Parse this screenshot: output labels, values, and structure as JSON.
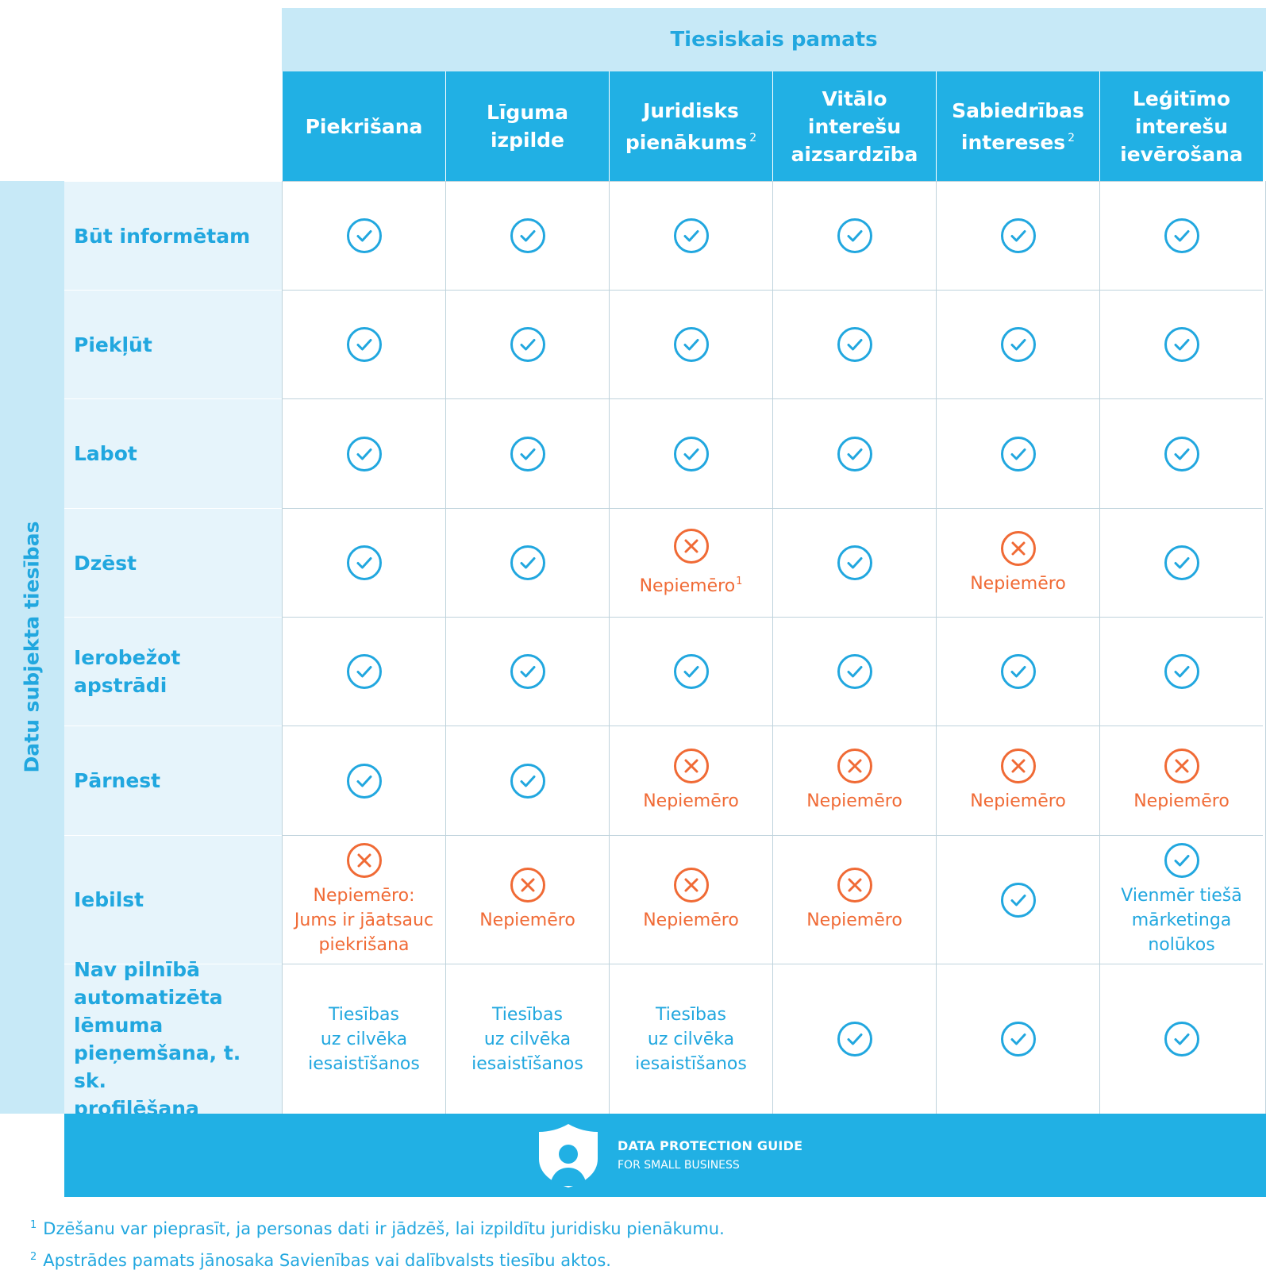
{
  "header": {
    "title": "Tiesiskais pamats"
  },
  "columns": [
    {
      "label": "Piekrišana",
      "sup": ""
    },
    {
      "label": "Līguma izpilde",
      "sup": ""
    },
    {
      "label": "Juridisks\npienākums",
      "sup": "2"
    },
    {
      "label": "Vitālo interešu\naizsardzība",
      "sup": ""
    },
    {
      "label": "Sabiedrības\nintereses",
      "sup": "2"
    },
    {
      "label": "Leģitīmo\ninterešu\nievērošana",
      "sup": ""
    }
  ],
  "side_label": "Datu subjekta tiesības",
  "rows": [
    {
      "label": "Būt informētam",
      "cells": [
        {
          "icon": "check-icon"
        },
        {
          "icon": "check-icon"
        },
        {
          "icon": "check-icon"
        },
        {
          "icon": "check-icon"
        },
        {
          "icon": "check-icon"
        },
        {
          "icon": "check-icon"
        }
      ]
    },
    {
      "label": "Piekļūt",
      "cells": [
        {
          "icon": "check-icon"
        },
        {
          "icon": "check-icon"
        },
        {
          "icon": "check-icon"
        },
        {
          "icon": "check-icon"
        },
        {
          "icon": "check-icon"
        },
        {
          "icon": "check-icon"
        }
      ]
    },
    {
      "label": "Labot",
      "cells": [
        {
          "icon": "check-icon"
        },
        {
          "icon": "check-icon"
        },
        {
          "icon": "check-icon"
        },
        {
          "icon": "check-icon"
        },
        {
          "icon": "check-icon"
        },
        {
          "icon": "check-icon"
        }
      ]
    },
    {
      "label": "Dzēst",
      "cells": [
        {
          "icon": "check-icon"
        },
        {
          "icon": "check-icon"
        },
        {
          "icon": "cross-icon",
          "note": "Nepiemēro",
          "sup": "1"
        },
        {
          "icon": "check-icon"
        },
        {
          "icon": "cross-icon",
          "note": "Nepiemēro"
        },
        {
          "icon": "check-icon"
        }
      ]
    },
    {
      "label": "Ierobežot apstrādi",
      "cells": [
        {
          "icon": "check-icon"
        },
        {
          "icon": "check-icon"
        },
        {
          "icon": "check-icon"
        },
        {
          "icon": "check-icon"
        },
        {
          "icon": "check-icon"
        },
        {
          "icon": "check-icon"
        }
      ]
    },
    {
      "label": "Pārnest",
      "cells": [
        {
          "icon": "check-icon"
        },
        {
          "icon": "check-icon"
        },
        {
          "icon": "cross-icon",
          "note": "Nepiemēro"
        },
        {
          "icon": "cross-icon",
          "note": "Nepiemēro"
        },
        {
          "icon": "cross-icon",
          "note": "Nepiemēro"
        },
        {
          "icon": "cross-icon",
          "note": "Nepiemēro"
        }
      ]
    },
    {
      "label": "Iebilst",
      "cells": [
        {
          "icon": "cross-icon",
          "note": "Nepiemēro:\nJums ir jāatsauc\npiekrišana"
        },
        {
          "icon": "cross-icon",
          "note": "Nepiemēro"
        },
        {
          "icon": "cross-icon",
          "note": "Nepiemēro"
        },
        {
          "icon": "cross-icon",
          "note": "Nepiemēro"
        },
        {
          "icon": "check-icon"
        },
        {
          "icon": "check-icon",
          "note": "Vienmēr tiešā\nmārketinga\nnolūkos"
        }
      ]
    },
    {
      "label": "Nav pilnībā\nautomatizēta\nlēmuma\npieņemšana, t. sk.\nprofilēšana",
      "cells": [
        {
          "text": "Tiesības\nuz cilvēka\niesaistīšanos"
        },
        {
          "text": "Tiesības\nuz cilvēka\niesaistīšanos"
        },
        {
          "text": "Tiesības\nuz cilvēka\niesaistīšanos"
        },
        {
          "icon": "check-icon"
        },
        {
          "icon": "check-icon"
        },
        {
          "icon": "check-icon"
        }
      ]
    }
  ],
  "brand": {
    "title": "DATA PROTECTION GUIDE",
    "subtitle": "FOR SMALL BUSINESS",
    "icon": "shield-person-icon"
  },
  "footnotes": [
    {
      "mark": "1",
      "text": "Dzēšanu var pieprasīt, ja personas dati ir jādzēš, lai izpildītu juridisku pienākumu."
    },
    {
      "mark": "2",
      "text": "Apstrādes pamats jānosaka Savienības vai dalībvalsts tiesību aktos."
    }
  ],
  "colors": {
    "accent_blue": "#21b0e4",
    "text_blue": "#21a7df",
    "light_blue": "#c7e9f7",
    "pale_blue": "#e6f4fb",
    "no_orange": "#f06a35"
  }
}
